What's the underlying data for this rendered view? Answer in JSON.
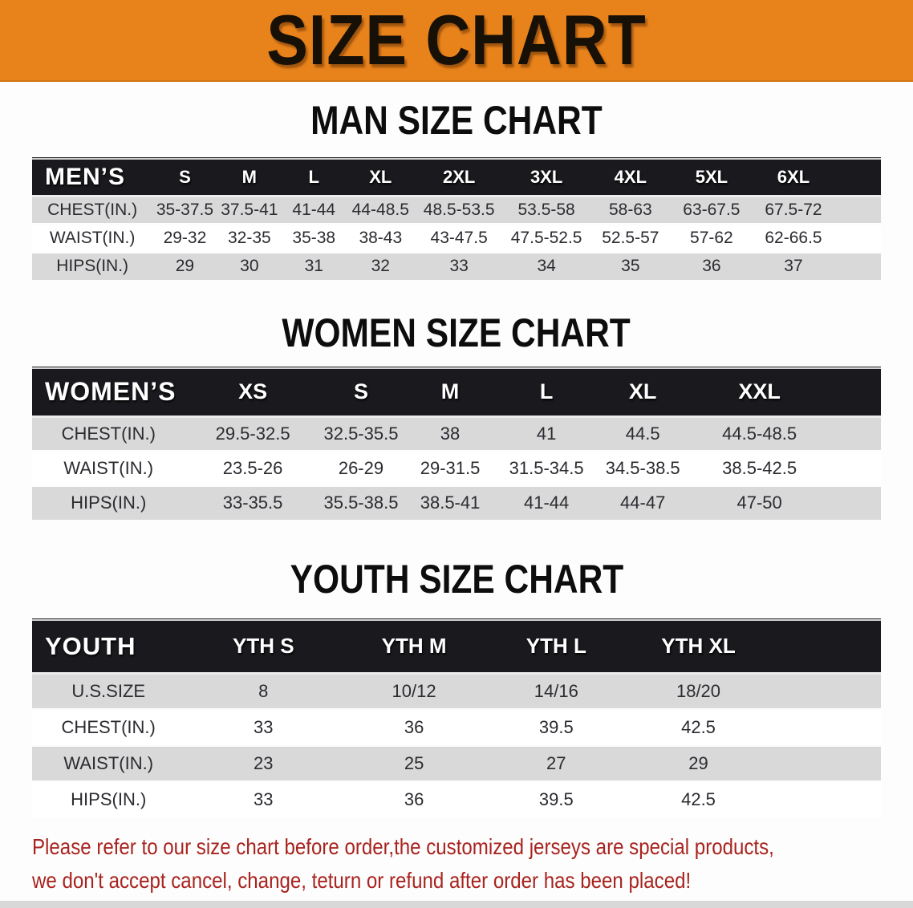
{
  "banner": {
    "title": "SIZE CHART",
    "background_color": "#E8821B"
  },
  "sections": [
    {
      "name": "men",
      "heading": "MAN SIZE CHART",
      "table": {
        "header_label": "MEN’S",
        "size_columns": [
          "S",
          "M",
          "L",
          "XL",
          "2XL",
          "3XL",
          "4XL",
          "5XL",
          "6XL"
        ],
        "rows": [
          {
            "label": "CHEST(IN.)",
            "values": [
              "35-37.5",
              "37.5-41",
              "41-44",
              "44-48.5",
              "48.5-53.5",
              "53.5-58",
              "58-63",
              "63-67.5",
              "67.5-72"
            ]
          },
          {
            "label": "WAIST(IN.)",
            "values": [
              "29-32",
              "32-35",
              "35-38",
              "38-43",
              "43-47.5",
              "47.5-52.5",
              "52.5-57",
              "57-62",
              "62-66.5"
            ]
          },
          {
            "label": "HIPS(IN.)",
            "values": [
              "29",
              "30",
              "31",
              "32",
              "33",
              "34",
              "35",
              "36",
              "37"
            ]
          }
        ],
        "shaded_rows": [
          0,
          2
        ],
        "col_widths_pct": [
          14.2,
          7.6,
          7.6,
          7.6,
          8.1,
          10.4,
          10.2,
          9.6,
          9.5,
          9.8,
          5.4
        ]
      }
    },
    {
      "name": "women",
      "heading": "WOMEN SIZE CHART",
      "table": {
        "header_label": "WOMEN’S",
        "size_columns": [
          "XS",
          "S",
          "M",
          "L",
          "XL",
          "XXL"
        ],
        "rows": [
          {
            "label": "CHEST(IN.)",
            "values": [
              "29.5-32.5",
              "32.5-35.5",
              "38",
              "41",
              "44.5",
              "44.5-48.5"
            ]
          },
          {
            "label": "WAIST(IN.)",
            "values": [
              "23.5-26",
              "26-29",
              "29-31.5",
              "31.5-34.5",
              "34.5-38.5",
              "38.5-42.5"
            ]
          },
          {
            "label": "HIPS(IN.)",
            "values": [
              "33-35.5",
              "35.5-38.5",
              "38.5-41",
              "41-44",
              "44-47",
              "47-50"
            ]
          }
        ],
        "shaded_rows": [
          0,
          2
        ],
        "col_widths_pct": [
          18,
          16,
          9.5,
          11.5,
          11.2,
          11.5,
          16,
          6.3
        ]
      }
    },
    {
      "name": "youth",
      "heading": "YOUTH SIZE CHART",
      "table": {
        "header_label": "YOUTH",
        "size_columns": [
          "YTH S",
          "YTH M",
          "YTH L",
          "YTH XL"
        ],
        "rows": [
          {
            "label": "U.S.SIZE",
            "values": [
              "8",
              "10/12",
              "14/16",
              "18/20"
            ]
          },
          {
            "label": "CHEST(IN.)",
            "values": [
              "33",
              "36",
              "39.5",
              "42.5"
            ]
          },
          {
            "label": "WAIST(IN.)",
            "values": [
              "23",
              "25",
              "27",
              "29"
            ]
          },
          {
            "label": "HIPS(IN.)",
            "values": [
              "33",
              "36",
              "39.5",
              "42.5"
            ]
          }
        ],
        "shaded_rows": [
          0,
          2
        ],
        "col_widths_pct": [
          18,
          18.5,
          17,
          16.5,
          17,
          13
        ]
      }
    }
  ],
  "disclaimer": {
    "line1": "Please refer to our size chart before order,the customized jerseys are special products,",
    "line2": "we don't accept cancel, change, teturn or refund after order has been placed!",
    "text_color": "#A8231E"
  },
  "colors": {
    "banner_orange": "#E8821B",
    "header_band_black": "#1A191D",
    "shaded_row_gray": "#D9D9D9"
  }
}
